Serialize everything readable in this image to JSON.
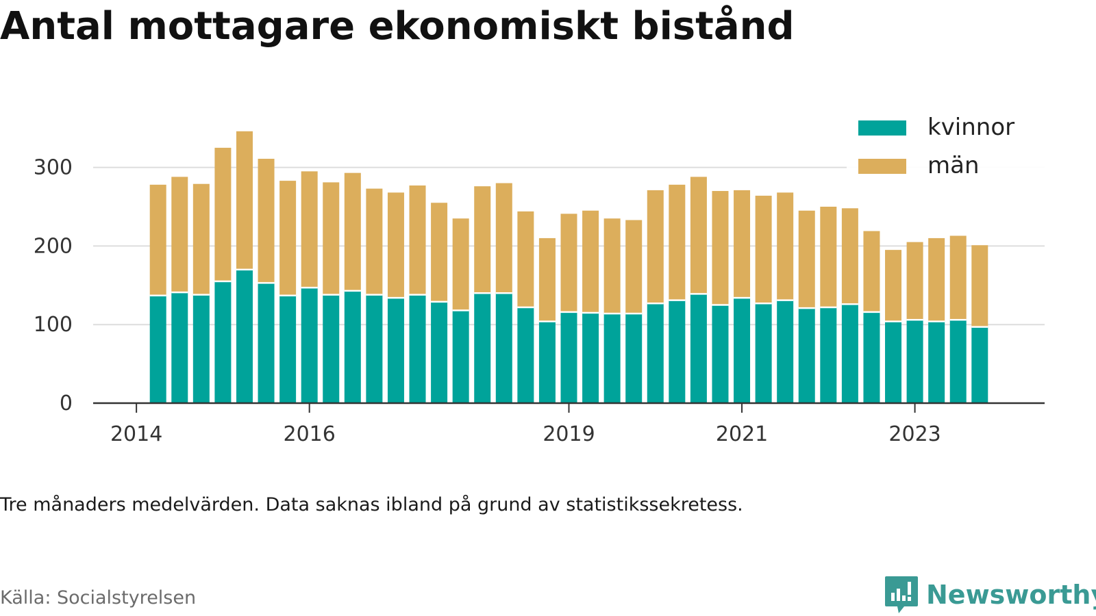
{
  "title": "Antal mottagare ekonomiskt bistånd",
  "note": "Tre månaders medelvärden. Data saknas ibland på grund av statistikssekretess.",
  "source": "Källa: Socialstyrelsen",
  "logo": {
    "name": "Newsworthy",
    "icon": "newsworthy-logo-icon",
    "color": "#3a9a94"
  },
  "chart_data": {
    "type": "bar",
    "stacked": true,
    "title": "",
    "xlabel": "",
    "ylabel": "",
    "ylim": [
      0,
      340
    ],
    "yticks": [
      0,
      100,
      200,
      300
    ],
    "xticks": [
      2014,
      2016,
      2019,
      2021,
      2023
    ],
    "x_range": [
      2013.5,
      2024.5
    ],
    "grid": "horizontal",
    "legend_position": "top-right",
    "categories": [
      "2014-Q2",
      "2014-Q3",
      "2014-Q4",
      "2015-Q1",
      "2015-Q2",
      "2015-Q3",
      "2015-Q4",
      "2016-Q1",
      "2016-Q2",
      "2016-Q3",
      "2016-Q4",
      "2017-Q1",
      "2017-Q2",
      "2017-Q3",
      "2017-Q4",
      "2018-Q1",
      "2018-Q2",
      "2018-Q3",
      "2018-Q4",
      "2019-Q1",
      "2019-Q2",
      "2019-Q3",
      "2019-Q4",
      "2020-Q1",
      "2020-Q2",
      "2020-Q3",
      "2020-Q4",
      "2021-Q1",
      "2021-Q2",
      "2021-Q3",
      "2021-Q4",
      "2022-Q1",
      "2022-Q2",
      "2022-Q3",
      "2022-Q4",
      "2023-Q1",
      "2023-Q2",
      "2023-Q3",
      "2023-Q4"
    ],
    "x": [
      2014.25,
      2014.5,
      2014.75,
      2015.0,
      2015.25,
      2015.5,
      2015.75,
      2016.0,
      2016.25,
      2016.5,
      2016.75,
      2017.0,
      2017.25,
      2017.5,
      2017.75,
      2018.0,
      2018.25,
      2018.5,
      2018.75,
      2019.0,
      2019.25,
      2019.5,
      2019.75,
      2020.0,
      2020.25,
      2020.5,
      2020.75,
      2021.0,
      2021.25,
      2021.5,
      2021.75,
      2022.0,
      2022.25,
      2022.5,
      2022.75,
      2023.0,
      2023.25,
      2023.5,
      2023.75
    ],
    "series": [
      {
        "name": "kvinnor",
        "color": "#00a39a",
        "values": [
          137,
          141,
          138,
          155,
          170,
          153,
          137,
          147,
          138,
          143,
          138,
          134,
          138,
          129,
          118,
          140,
          140,
          122,
          104,
          116,
          115,
          114,
          114,
          127,
          131,
          139,
          125,
          134,
          127,
          131,
          121,
          122,
          126,
          116,
          104,
          106,
          104,
          106,
          97
        ]
      },
      {
        "name": "män",
        "color": "#dcae5c",
        "values": [
          141,
          147,
          141,
          170,
          176,
          158,
          146,
          148,
          143,
          150,
          135,
          134,
          139,
          126,
          117,
          136,
          140,
          122,
          106,
          125,
          130,
          121,
          119,
          144,
          147,
          149,
          145,
          137,
          137,
          137,
          124,
          128,
          122,
          103,
          91,
          99,
          106,
          107,
          104
        ]
      }
    ]
  }
}
